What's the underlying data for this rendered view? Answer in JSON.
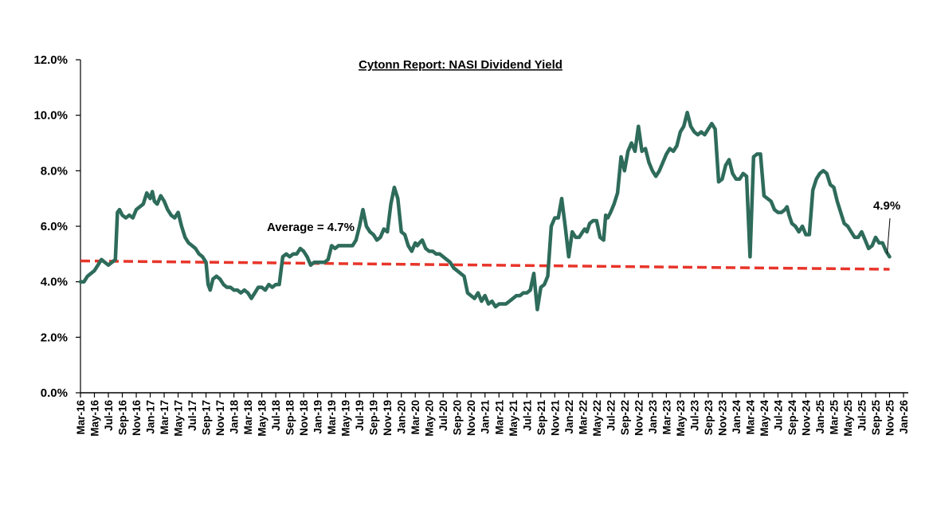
{
  "chart_data": {
    "type": "line",
    "title": "Cytonn Report: NASI Dividend Yield",
    "xlabel": "",
    "ylabel": "",
    "ylim": [
      0,
      12
    ],
    "y_ticks": [
      "0.0%",
      "2.0%",
      "4.0%",
      "6.0%",
      "8.0%",
      "10.0%",
      "12.0%"
    ],
    "y_tick_values": [
      0,
      2,
      4,
      6,
      8,
      10,
      12
    ],
    "grid": false,
    "legend": "none",
    "x_tick_labels": [
      "Mar-16",
      "May-16",
      "Jul-16",
      "Sep-16",
      "Nov-16",
      "Jan-17",
      "Mar-17",
      "May-17",
      "Jul-17",
      "Sep-17",
      "Nov-17",
      "Jan-18",
      "Mar-18",
      "May-18",
      "Jul-18",
      "Sep-18",
      "Nov-18",
      "Jan-19",
      "Mar-19",
      "May-19",
      "Jul-19",
      "Sep-19",
      "Nov-19",
      "Jan-20",
      "Mar-20",
      "May-20",
      "Jul-20",
      "Sep-20",
      "Nov-20",
      "Jan-21",
      "Mar-21",
      "May-21",
      "Jul-21",
      "Sep-21",
      "Nov-21",
      "Jan-22",
      "Mar-22",
      "May-22",
      "Jul-22",
      "Sep-22",
      "Nov-22",
      "Jan-23",
      "Mar-23",
      "May-23",
      "Jul-23",
      "Sep-23",
      "Nov-23",
      "Jan-24",
      "Mar-24",
      "May-24",
      "Jul-24",
      "Sep-24",
      "Nov-24",
      "Jan-25",
      "Mar-25",
      "May-25",
      "Jul-25",
      "Sep-25",
      "Nov-25",
      "Jan-26"
    ],
    "series": [
      {
        "name": "NASI Dividend Yield",
        "color": "#2E6B5A",
        "unit": "%",
        "x_months_from_start": [
          0,
          0.5,
          1,
          1.5,
          2,
          2.5,
          3,
          3.5,
          4,
          4.5,
          5,
          5.3,
          5.6,
          6,
          6.5,
          7,
          7.5,
          8,
          8.5,
          9,
          9.5,
          10,
          10.3,
          10.6,
          11,
          11.5,
          12,
          12.5,
          13,
          13.5,
          14,
          14.5,
          15,
          15.5,
          16,
          16.5,
          17,
          17.5,
          18,
          18.3,
          18.6,
          19,
          19.5,
          20,
          20.5,
          21,
          21.5,
          22,
          22.5,
          23,
          23.5,
          24,
          24.5,
          25,
          25.5,
          26,
          26.5,
          27,
          27.5,
          28,
          28.5,
          29,
          29.5,
          30,
          30.5,
          31,
          31.5,
          32,
          32.5,
          33,
          33.5,
          34,
          34.5,
          35,
          35.5,
          36,
          36.5,
          37,
          37.5,
          38,
          38.5,
          39,
          39.5,
          40,
          40.5,
          41,
          41.5,
          42,
          42.5,
          43,
          43.5,
          44,
          44.5,
          45,
          45.5,
          46,
          46.5,
          47,
          47.5,
          48,
          48.3,
          48.6,
          49,
          49.5,
          50,
          50.5,
          51,
          51.5,
          52,
          52.5,
          53,
          53.5,
          54,
          54.5,
          55,
          55.5,
          56,
          56.5,
          57,
          57.5,
          58,
          58.5,
          59,
          59.5,
          60,
          60.5,
          61,
          61.5,
          62,
          62.5,
          63,
          63.5,
          64,
          64.5,
          65,
          65.5,
          66,
          66.5,
          67,
          67.5,
          68,
          68.5,
          69,
          69.5,
          70,
          70.5,
          71,
          71.5,
          72,
          72.3,
          72.6,
          73,
          73.5,
          74,
          74.5,
          75,
          75.3,
          75.6,
          76,
          76.5,
          77,
          77.5,
          78,
          78.5,
          79,
          79.5,
          80,
          80.5,
          81,
          81.5,
          82,
          82.5,
          83,
          83.5,
          84,
          84.5,
          85,
          85.5,
          86,
          86.5,
          87,
          87.5,
          88,
          88.5,
          89,
          89.5,
          90,
          90.5,
          91,
          91.5,
          92,
          92.5,
          93,
          93.5,
          94,
          94.5,
          95,
          95.5,
          96,
          96.5,
          97,
          97.5,
          98,
          98.5,
          99,
          99.5,
          100,
          100.5,
          101,
          101.3,
          101.6,
          102,
          102.5,
          103,
          103.5,
          104,
          104.5,
          105,
          105.5,
          106,
          106.5,
          107,
          107.5,
          108,
          108.5,
          109,
          109.5,
          110,
          110.5,
          111,
          111.5,
          112,
          112.5,
          113,
          113.5,
          114,
          114.5,
          115,
          115.5,
          116
        ],
        "values": [
          4.0,
          4.0,
          4.2,
          4.3,
          4.4,
          4.6,
          4.8,
          4.7,
          4.6,
          4.7,
          4.8,
          6.5,
          6.6,
          6.4,
          6.3,
          6.4,
          6.3,
          6.6,
          6.7,
          6.8,
          7.2,
          7.0,
          7.25,
          6.9,
          6.8,
          7.1,
          6.9,
          6.6,
          6.4,
          6.3,
          6.5,
          6.0,
          5.6,
          5.4,
          5.3,
          5.2,
          5.0,
          4.9,
          4.7,
          3.9,
          3.7,
          4.1,
          4.2,
          4.1,
          3.9,
          3.8,
          3.8,
          3.7,
          3.7,
          3.6,
          3.7,
          3.6,
          3.4,
          3.6,
          3.8,
          3.8,
          3.7,
          3.9,
          3.8,
          3.9,
          3.9,
          4.9,
          5.0,
          4.9,
          5.0,
          5.0,
          5.2,
          5.1,
          4.9,
          4.6,
          4.7,
          4.7,
          4.7,
          4.7,
          4.8,
          5.3,
          5.2,
          5.3,
          5.3,
          5.3,
          5.3,
          5.3,
          5.5,
          6.0,
          6.6,
          6.0,
          5.8,
          5.7,
          5.5,
          5.6,
          5.9,
          5.8,
          6.8,
          7.4,
          7.0,
          5.8,
          5.7,
          5.3,
          5.1,
          5.4,
          5.3,
          5.4,
          5.5,
          5.2,
          5.1,
          5.1,
          5.0,
          5.0,
          4.9,
          4.8,
          4.7,
          4.5,
          4.4,
          4.3,
          4.2,
          3.6,
          3.5,
          3.4,
          3.6,
          3.3,
          3.5,
          3.2,
          3.3,
          3.1,
          3.2,
          3.2,
          3.2,
          3.3,
          3.4,
          3.5,
          3.5,
          3.6,
          3.6,
          3.7,
          4.3,
          3.0,
          3.8,
          3.9,
          4.2,
          6.0,
          6.3,
          6.3,
          7.0,
          6.0,
          4.9,
          5.8,
          5.6,
          5.6,
          5.8,
          5.9,
          5.8,
          6.1,
          6.2,
          6.2,
          5.6,
          5.5,
          6.4,
          6.3,
          6.5,
          6.8,
          7.2,
          8.5,
          8.0,
          8.7,
          9.0,
          8.7,
          9.6,
          8.7,
          8.8,
          8.3,
          8.0,
          7.8,
          8.0,
          8.3,
          8.6,
          8.8,
          8.7,
          8.9,
          9.4,
          9.6,
          10.1,
          9.6,
          9.4,
          9.3,
          9.4,
          9.3,
          9.5,
          9.7,
          9.5,
          7.6,
          7.7,
          8.2,
          8.4,
          7.9,
          7.7,
          7.7,
          7.9,
          7.8,
          4.9,
          8.5,
          8.6,
          8.6,
          7.1,
          7.0,
          6.9,
          6.6,
          6.5,
          6.5,
          6.6,
          6.7,
          6.4,
          6.1,
          6.0,
          5.8,
          6.0,
          5.7,
          5.7,
          7.3,
          7.7,
          7.9,
          8.0,
          7.9,
          7.5,
          7.4,
          6.9,
          6.5,
          6.1,
          6.0,
          5.8,
          5.6,
          5.6,
          5.8,
          5.5,
          5.2,
          5.3,
          5.6,
          5.4,
          5.4,
          5.1,
          4.9
        ]
      },
      {
        "name": "Average",
        "color": "#E8352A",
        "style": "dashed",
        "x_months_from_start": [
          0,
          116
        ],
        "values": [
          4.75,
          4.45
        ]
      }
    ],
    "annotations": [
      {
        "text": "Average = 4.7%",
        "target_series": "Average"
      },
      {
        "text": "4.9%",
        "target_series": "NASI Dividend Yield",
        "target_x_months_from_start": 116,
        "target_value": 4.9
      }
    ]
  }
}
